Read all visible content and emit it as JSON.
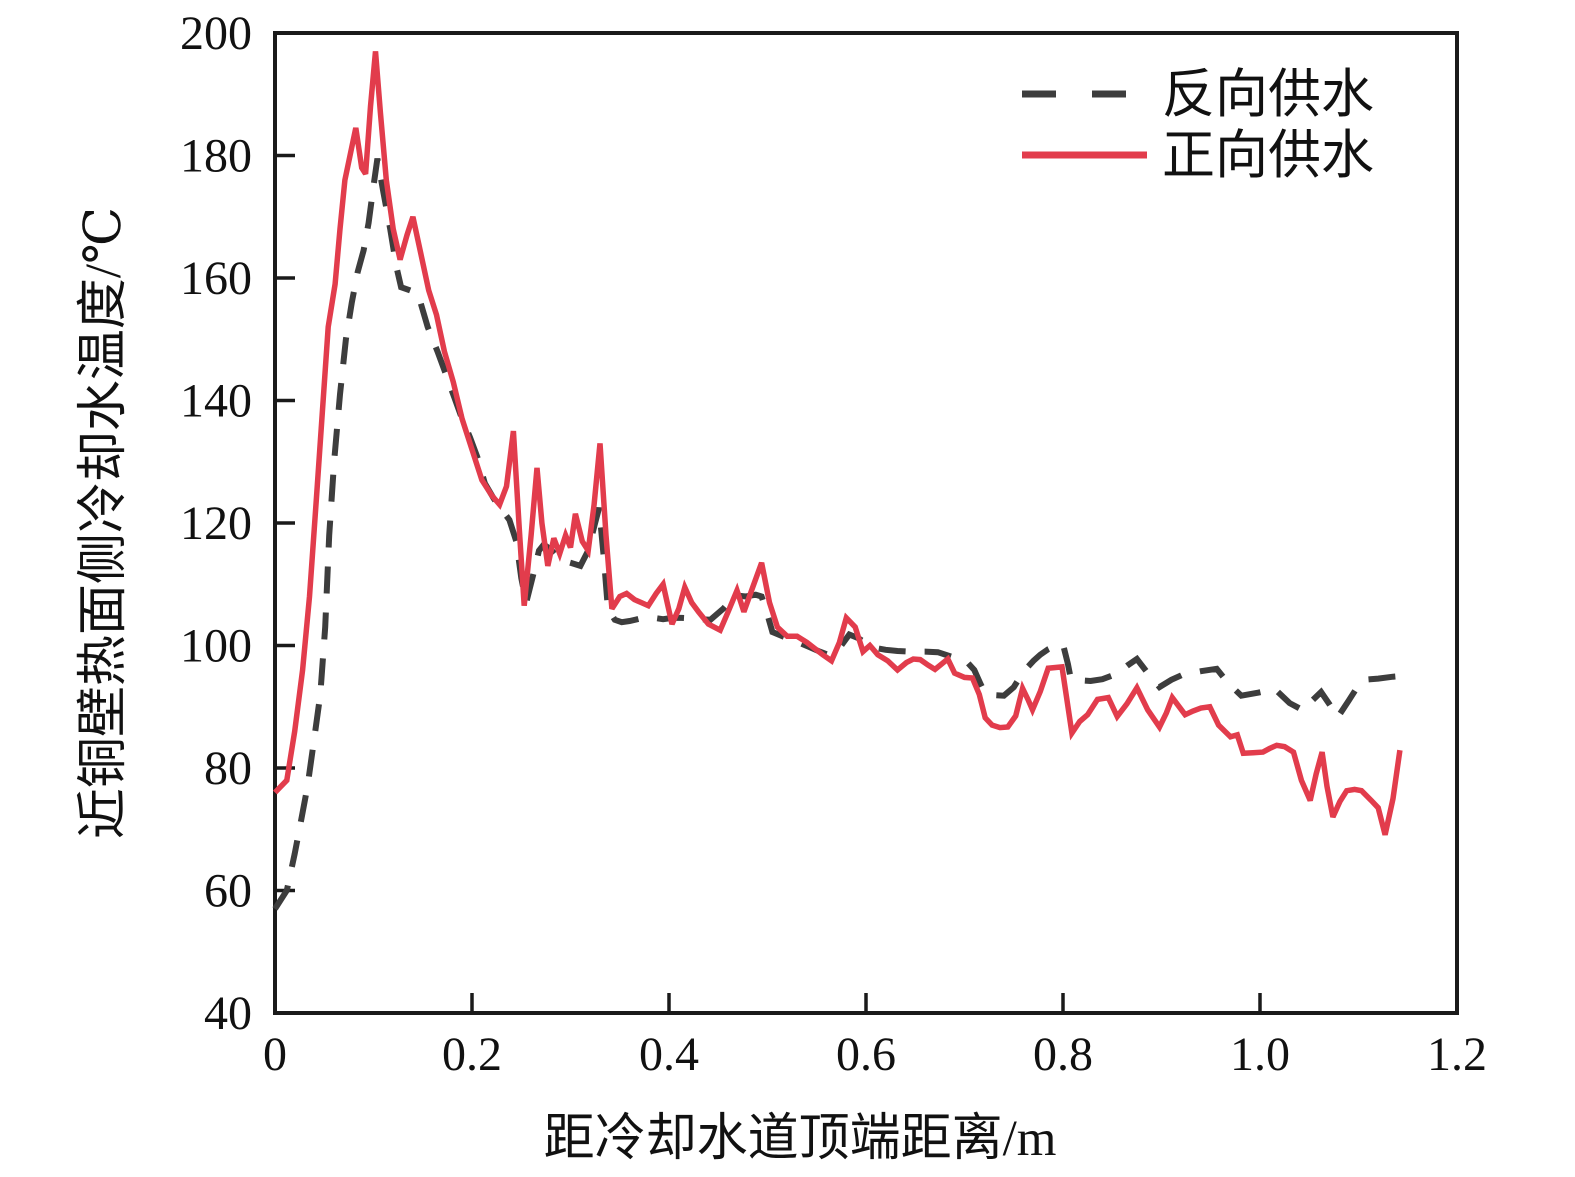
{
  "figure": {
    "background": "#ffffff",
    "axis_color": "#1a1a1a"
  },
  "chart_data": {
    "type": "line",
    "title": "",
    "xlabel": "距冷却水道顶端距离/m",
    "ylabel": "近铜壁热面侧冷却水温度/℃",
    "xlim": [
      0,
      1.2
    ],
    "ylim": [
      40,
      200
    ],
    "xticks": [
      0,
      0.2,
      0.4,
      0.6,
      0.8,
      1.0,
      1.2
    ],
    "xtick_labels": [
      "0",
      "0.2",
      "0.4",
      "0.6",
      "0.8",
      "1.0",
      "1.2"
    ],
    "yticks": [
      40,
      60,
      80,
      100,
      120,
      140,
      160,
      180,
      200
    ],
    "ytick_labels": [
      "40",
      "60",
      "80",
      "100",
      "120",
      "140",
      "160",
      "180",
      "200"
    ],
    "grid": false,
    "legend": {
      "position": "top-right",
      "entries": [
        "反向供水",
        "正向供水"
      ]
    },
    "series": [
      {
        "name": "反向供水",
        "line_style": "dashed",
        "color": "#3d3d3d",
        "points": [
          [
            0,
            57
          ],
          [
            0.012,
            60
          ],
          [
            0.02,
            66
          ],
          [
            0.026,
            71
          ],
          [
            0.033,
            77
          ],
          [
            0.04,
            85
          ],
          [
            0.046,
            92
          ],
          [
            0.051,
            103
          ],
          [
            0.055,
            118
          ],
          [
            0.06,
            130
          ],
          [
            0.066,
            141
          ],
          [
            0.072,
            150
          ],
          [
            0.078,
            156
          ],
          [
            0.084,
            161
          ],
          [
            0.09,
            164.5
          ],
          [
            0.095,
            169
          ],
          [
            0.1,
            175
          ],
          [
            0.104,
            179.5
          ],
          [
            0.11,
            174
          ],
          [
            0.117,
            168
          ],
          [
            0.123,
            162
          ],
          [
            0.128,
            158.5
          ],
          [
            0.137,
            158
          ],
          [
            0.145,
            157.5
          ],
          [
            0.155,
            152
          ],
          [
            0.165,
            148
          ],
          [
            0.173,
            144.5
          ],
          [
            0.182,
            140.5
          ],
          [
            0.19,
            137
          ],
          [
            0.198,
            134
          ],
          [
            0.206,
            130.5
          ],
          [
            0.213,
            126.5
          ],
          [
            0.222,
            124
          ],
          [
            0.231,
            122
          ],
          [
            0.238,
            120.5
          ],
          [
            0.245,
            117
          ],
          [
            0.25,
            111
          ],
          [
            0.255,
            107
          ],
          [
            0.262,
            111.5
          ],
          [
            0.268,
            115.5
          ],
          [
            0.273,
            116.5
          ],
          [
            0.281,
            115.5
          ],
          [
            0.289,
            114
          ],
          [
            0.3,
            113.5
          ],
          [
            0.31,
            113
          ],
          [
            0.318,
            115.5
          ],
          [
            0.325,
            120
          ],
          [
            0.329,
            122.5
          ],
          [
            0.334,
            114
          ],
          [
            0.338,
            106
          ],
          [
            0.345,
            104.2
          ],
          [
            0.352,
            103.8
          ],
          [
            0.36,
            104
          ],
          [
            0.368,
            104.3
          ],
          [
            0.376,
            104.6
          ],
          [
            0.385,
            104.5
          ],
          [
            0.394,
            104.3
          ],
          [
            0.403,
            104.5
          ],
          [
            0.413,
            104.5
          ],
          [
            0.423,
            104.4
          ],
          [
            0.432,
            104.3
          ],
          [
            0.442,
            104.2
          ],
          [
            0.455,
            106
          ],
          [
            0.467,
            108.2
          ],
          [
            0.478,
            108
          ],
          [
            0.488,
            108.3
          ],
          [
            0.494,
            108
          ],
          [
            0.5,
            105
          ],
          [
            0.505,
            102.2
          ],
          [
            0.514,
            101.6
          ],
          [
            0.523,
            101
          ],
          [
            0.533,
            100.4
          ],
          [
            0.543,
            99.7
          ],
          [
            0.553,
            99
          ],
          [
            0.563,
            98.4
          ],
          [
            0.574,
            99.8
          ],
          [
            0.583,
            101.8
          ],
          [
            0.592,
            101.2
          ],
          [
            0.6,
            100.4
          ],
          [
            0.61,
            99.6
          ],
          [
            0.62,
            99.3
          ],
          [
            0.632,
            99.1
          ],
          [
            0.645,
            99
          ],
          [
            0.66,
            99
          ],
          [
            0.673,
            98.9
          ],
          [
            0.688,
            98.1
          ],
          [
            0.702,
            97.4
          ],
          [
            0.71,
            96
          ],
          [
            0.716,
            93.8
          ],
          [
            0.721,
            92.2
          ],
          [
            0.73,
            91.9
          ],
          [
            0.74,
            91.8
          ],
          [
            0.75,
            93.2
          ],
          [
            0.757,
            95
          ],
          [
            0.763,
            96.3
          ],
          [
            0.77,
            97.5
          ],
          [
            0.777,
            98.5
          ],
          [
            0.785,
            99.4
          ],
          [
            0.793,
            100
          ],
          [
            0.8,
            100.2
          ],
          [
            0.805,
            97
          ],
          [
            0.808,
            94.5
          ],
          [
            0.818,
            94.3
          ],
          [
            0.828,
            94.2
          ],
          [
            0.84,
            94.5
          ],
          [
            0.855,
            95.4
          ],
          [
            0.866,
            96.8
          ],
          [
            0.875,
            97.8
          ],
          [
            0.886,
            95.5
          ],
          [
            0.898,
            93.2
          ],
          [
            0.91,
            94.4
          ],
          [
            0.921,
            95.2
          ],
          [
            0.94,
            95.8
          ],
          [
            0.956,
            96.2
          ],
          [
            0.968,
            93.8
          ],
          [
            0.981,
            91.8
          ],
          [
            0.998,
            92.3
          ],
          [
            1.015,
            92.9
          ],
          [
            1.03,
            90.6
          ],
          [
            1.044,
            89.4
          ],
          [
            1.053,
            91
          ],
          [
            1.062,
            92.4
          ],
          [
            1.071,
            90.3
          ],
          [
            1.079,
            88.3
          ],
          [
            1.09,
            91
          ],
          [
            1.098,
            93
          ],
          [
            1.105,
            94.4
          ],
          [
            1.12,
            94.6
          ],
          [
            1.135,
            94.9
          ],
          [
            1.142,
            95
          ]
        ]
      },
      {
        "name": "正向供水",
        "line_style": "solid",
        "color": "#e23c4c",
        "points": [
          [
            0,
            76
          ],
          [
            0.012,
            78
          ],
          [
            0.02,
            86
          ],
          [
            0.028,
            96
          ],
          [
            0.035,
            108
          ],
          [
            0.042,
            124
          ],
          [
            0.048,
            138
          ],
          [
            0.054,
            152
          ],
          [
            0.061,
            159
          ],
          [
            0.066,
            168
          ],
          [
            0.071,
            176
          ],
          [
            0.082,
            184.5
          ],
          [
            0.088,
            178
          ],
          [
            0.092,
            177
          ],
          [
            0.097,
            188
          ],
          [
            0.102,
            197
          ],
          [
            0.107,
            187
          ],
          [
            0.113,
            176
          ],
          [
            0.12,
            168
          ],
          [
            0.127,
            163
          ],
          [
            0.134,
            167
          ],
          [
            0.14,
            170
          ],
          [
            0.148,
            164
          ],
          [
            0.156,
            158
          ],
          [
            0.164,
            154
          ],
          [
            0.172,
            148
          ],
          [
            0.181,
            143
          ],
          [
            0.19,
            137
          ],
          [
            0.2,
            132
          ],
          [
            0.21,
            127
          ],
          [
            0.22,
            124.5
          ],
          [
            0.228,
            123
          ],
          [
            0.235,
            126
          ],
          [
            0.242,
            135
          ],
          [
            0.248,
            119
          ],
          [
            0.253,
            106.5
          ],
          [
            0.26,
            118
          ],
          [
            0.266,
            129
          ],
          [
            0.271,
            120
          ],
          [
            0.277,
            113
          ],
          [
            0.283,
            117.5
          ],
          [
            0.289,
            115
          ],
          [
            0.295,
            118
          ],
          [
            0.3,
            116
          ],
          [
            0.305,
            121.5
          ],
          [
            0.312,
            117
          ],
          [
            0.318,
            115.5
          ],
          [
            0.324,
            123
          ],
          [
            0.33,
            133
          ],
          [
            0.336,
            118
          ],
          [
            0.342,
            106
          ],
          [
            0.35,
            108
          ],
          [
            0.357,
            108.5
          ],
          [
            0.365,
            107.5
          ],
          [
            0.372,
            107
          ],
          [
            0.379,
            106.5
          ],
          [
            0.387,
            108.5
          ],
          [
            0.394,
            110
          ],
          [
            0.403,
            103.5
          ],
          [
            0.41,
            106
          ],
          [
            0.416,
            109.5
          ],
          [
            0.423,
            107
          ],
          [
            0.43,
            105.5
          ],
          [
            0.44,
            103.5
          ],
          [
            0.452,
            102.5
          ],
          [
            0.46,
            105.5
          ],
          [
            0.469,
            109
          ],
          [
            0.476,
            105.5
          ],
          [
            0.485,
            109.5
          ],
          [
            0.494,
            113.5
          ],
          [
            0.502,
            107
          ],
          [
            0.51,
            103
          ],
          [
            0.52,
            101.5
          ],
          [
            0.53,
            101.5
          ],
          [
            0.54,
            100.5
          ],
          [
            0.548,
            99.5
          ],
          [
            0.556,
            98.5
          ],
          [
            0.565,
            97.5
          ],
          [
            0.573,
            100.5
          ],
          [
            0.58,
            104.5
          ],
          [
            0.589,
            103
          ],
          [
            0.597,
            99
          ],
          [
            0.604,
            100
          ],
          [
            0.612,
            98.5
          ],
          [
            0.622,
            97.5
          ],
          [
            0.632,
            96
          ],
          [
            0.641,
            97.2
          ],
          [
            0.648,
            97.8
          ],
          [
            0.655,
            97.7
          ],
          [
            0.663,
            96.8
          ],
          [
            0.67,
            96.1
          ],
          [
            0.677,
            97
          ],
          [
            0.683,
            97.8
          ],
          [
            0.69,
            95.5
          ],
          [
            0.7,
            94.8
          ],
          [
            0.708,
            94.7
          ],
          [
            0.715,
            92
          ],
          [
            0.721,
            88.2
          ],
          [
            0.728,
            87
          ],
          [
            0.736,
            86.6
          ],
          [
            0.744,
            86.7
          ],
          [
            0.752,
            88.5
          ],
          [
            0.759,
            93
          ],
          [
            0.765,
            91
          ],
          [
            0.769,
            89.5
          ],
          [
            0.777,
            92.5
          ],
          [
            0.785,
            96.3
          ],
          [
            0.799,
            96.5
          ],
          [
            0.809,
            85.7
          ],
          [
            0.817,
            87.6
          ],
          [
            0.825,
            88.7
          ],
          [
            0.835,
            91.2
          ],
          [
            0.846,
            91.5
          ],
          [
            0.855,
            88.4
          ],
          [
            0.865,
            90.5
          ],
          [
            0.875,
            93.1
          ],
          [
            0.886,
            89.5
          ],
          [
            0.898,
            86.7
          ],
          [
            0.905,
            89
          ],
          [
            0.911,
            91.5
          ],
          [
            0.918,
            90
          ],
          [
            0.924,
            88.7
          ],
          [
            0.932,
            89.3
          ],
          [
            0.94,
            89.8
          ],
          [
            0.949,
            90
          ],
          [
            0.958,
            87
          ],
          [
            0.97,
            85.1
          ],
          [
            0.977,
            85.4
          ],
          [
            0.983,
            82.4
          ],
          [
            0.993,
            82.5
          ],
          [
            1.003,
            82.6
          ],
          [
            1.01,
            83.2
          ],
          [
            1.017,
            83.7
          ],
          [
            1.025,
            83.5
          ],
          [
            1.034,
            82.6
          ],
          [
            1.042,
            78
          ],
          [
            1.051,
            74.7
          ],
          [
            1.057,
            79
          ],
          [
            1.063,
            82.6
          ],
          [
            1.068,
            77
          ],
          [
            1.074,
            72
          ],
          [
            1.081,
            74.5
          ],
          [
            1.088,
            76.3
          ],
          [
            1.096,
            76.5
          ],
          [
            1.103,
            76.3
          ],
          [
            1.113,
            74.7
          ],
          [
            1.12,
            73.5
          ],
          [
            1.127,
            69.1
          ],
          [
            1.135,
            75
          ],
          [
            1.142,
            82.9
          ]
        ]
      }
    ]
  }
}
